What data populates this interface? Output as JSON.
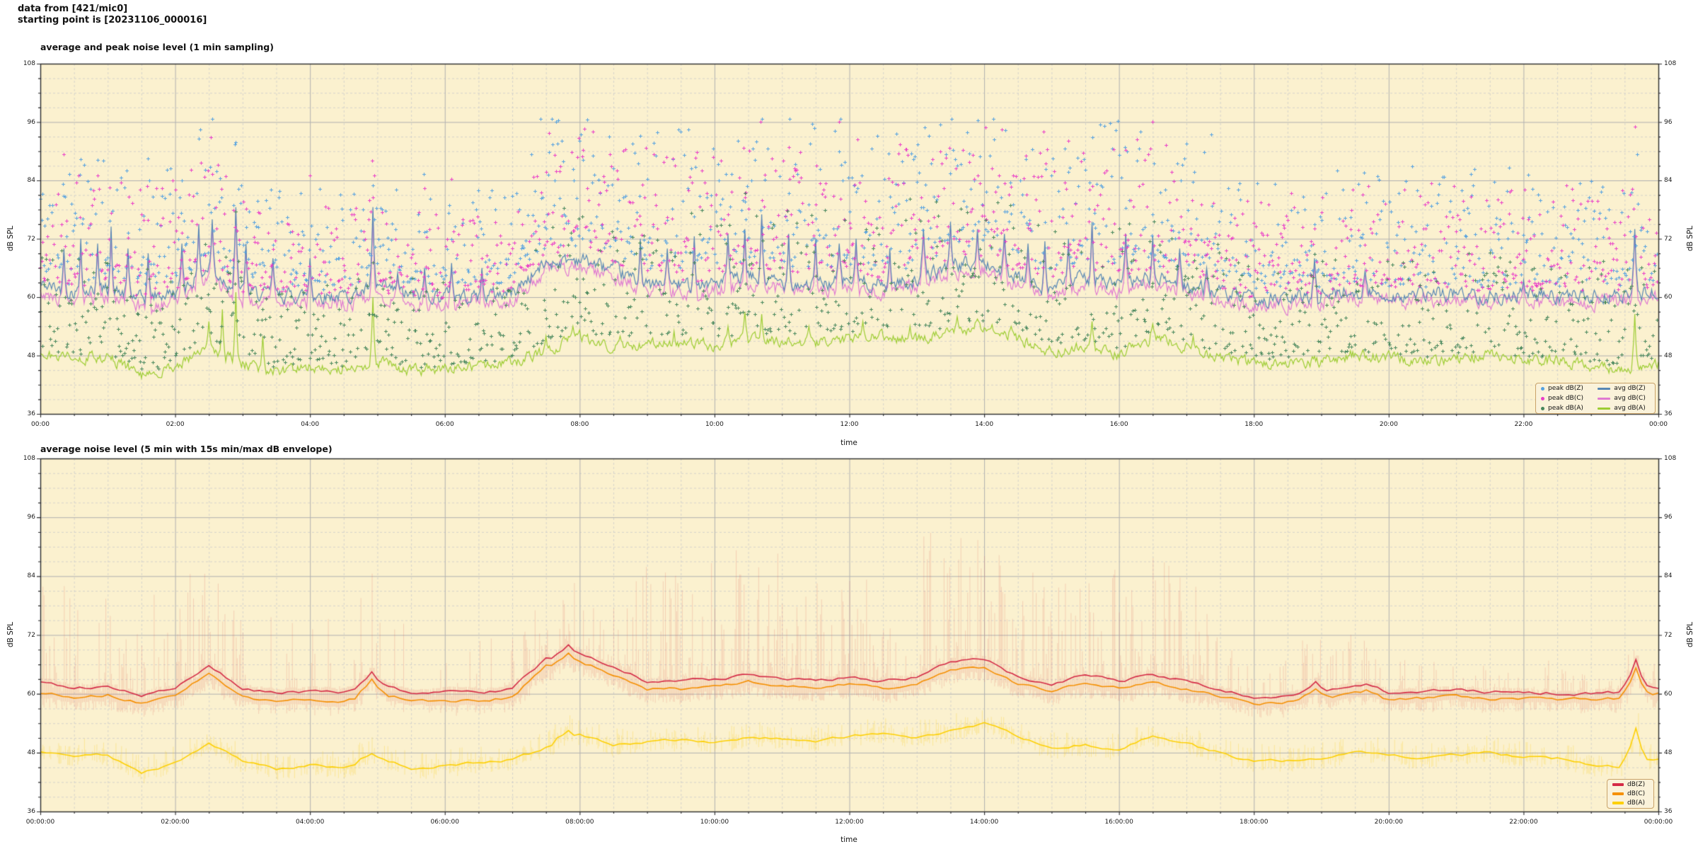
{
  "header": {
    "line1": "data from [421/mic0]",
    "line2": "starting point is [20231106_000016]"
  },
  "colors": {
    "plot_background": "#fbf1cf",
    "page_background": "#ffffff",
    "major_grid": "#b0b0b0",
    "minor_grid": "#cbcbcb",
    "spine": "#2b2b2b",
    "legend_background": "#faf2da",
    "legend_border": "#c9a268",
    "envelope_red": "rgba(223,90,82,0.22)",
    "envelope_yellow": "rgba(250,205,10,0.28)"
  },
  "chart_data": [
    {
      "type": "line+scatter",
      "title": "average and peak noise level (1 min sampling)",
      "xlabel": "time",
      "ylabel": "dB SPL",
      "ylim": [
        36,
        108
      ],
      "yticks": [
        36,
        48,
        60,
        72,
        84,
        96,
        108
      ],
      "yticklabels": [
        "36",
        "48",
        "60",
        "72",
        "84",
        "96",
        "108"
      ],
      "xlim_hours": [
        0,
        24
      ],
      "xtick_hours": [
        0,
        2,
        4,
        6,
        8,
        10,
        12,
        14,
        16,
        18,
        20,
        22,
        24
      ],
      "xtick_labels": [
        "00:00",
        "02:00",
        "04:00",
        "06:00",
        "08:00",
        "10:00",
        "12:00",
        "14:00",
        "16:00",
        "18:00",
        "20:00",
        "22:00",
        "00:00"
      ],
      "grid": {
        "major": true,
        "minor": true,
        "minor_db_step": 3,
        "minor_hour_step": 0.5
      },
      "anchor_dt_hours": 0.5,
      "sample_step_minutes": 1,
      "series": [
        {
          "name": "avg dB(Z)",
          "color": "#5787b5",
          "jitter": 2.4,
          "anchors": [
            62.5,
            61.2,
            61.5,
            59.6,
            61.0,
            65.8,
            61.0,
            60.3,
            60.5,
            60.2,
            62.0,
            60.3,
            60.4,
            60.3,
            61.0,
            67.0,
            68.0,
            65.5,
            62.5,
            62.5,
            63.0,
            64.0,
            63.0,
            62.5,
            63.5,
            62.5,
            63.5,
            66.5,
            67.0,
            63.5,
            62.0,
            64.0,
            62.5,
            64.0,
            62.5,
            60.8,
            59.3,
            59.6,
            60.5,
            61.3,
            60.2,
            60.4,
            60.8,
            60.2,
            60.5,
            60.1,
            60.0,
            60.3,
            61.2
          ],
          "spikes": [
            [
              0.35,
              70
            ],
            [
              0.6,
              72
            ],
            [
              0.85,
              71
            ],
            [
              1.05,
              74.5
            ],
            [
              1.3,
              70
            ],
            [
              1.6,
              69
            ],
            [
              2.1,
              71
            ],
            [
              2.35,
              75
            ],
            [
              2.55,
              76
            ],
            [
              2.9,
              78.5
            ],
            [
              3.05,
              71
            ],
            [
              3.45,
              68
            ],
            [
              4.0,
              68
            ],
            [
              4.93,
              78.5
            ],
            [
              5.3,
              65
            ],
            [
              5.7,
              66
            ],
            [
              6.1,
              67
            ],
            [
              6.55,
              66
            ],
            [
              8.9,
              72
            ],
            [
              9.3,
              70
            ],
            [
              9.7,
              72.5
            ],
            [
              10.2,
              73
            ],
            [
              10.45,
              74
            ],
            [
              10.7,
              77
            ],
            [
              11.1,
              73
            ],
            [
              11.5,
              72
            ],
            [
              11.85,
              71
            ],
            [
              12.1,
              72
            ],
            [
              12.6,
              70
            ],
            [
              13.1,
              74
            ],
            [
              13.5,
              75.5
            ],
            [
              13.9,
              74
            ],
            [
              14.3,
              73
            ],
            [
              14.65,
              71
            ],
            [
              14.9,
              71.5
            ],
            [
              15.25,
              72
            ],
            [
              15.6,
              75.5
            ],
            [
              16.1,
              73
            ],
            [
              16.5,
              72.5
            ],
            [
              16.9,
              70
            ],
            [
              17.3,
              66
            ],
            [
              18.9,
              68
            ],
            [
              19.65,
              65.5
            ],
            [
              22.0,
              63.5
            ],
            [
              23.65,
              74
            ]
          ]
        },
        {
          "name": "avg dB(C)",
          "color": "#e07ad2",
          "jitter": 2.4,
          "anchors": [
            60.3,
            59.5,
            59.8,
            58.0,
            59.3,
            64.2,
            59.3,
            58.6,
            58.8,
            58.5,
            60.2,
            58.6,
            58.7,
            58.6,
            59.3,
            65.6,
            66.6,
            64.0,
            61.0,
            61.0,
            61.5,
            62.5,
            61.5,
            61.0,
            62.0,
            61.0,
            62.0,
            65.0,
            65.6,
            62.0,
            60.5,
            62.4,
            61.0,
            62.4,
            61.0,
            59.4,
            58.0,
            58.3,
            59.2,
            60.0,
            59.0,
            59.2,
            59.5,
            59.0,
            59.2,
            58.9,
            58.8,
            59.1,
            60.0
          ],
          "spikes": [
            [
              0.35,
              69
            ],
            [
              0.6,
              71
            ],
            [
              0.85,
              70
            ],
            [
              1.05,
              73.5
            ],
            [
              1.3,
              69
            ],
            [
              1.6,
              68
            ],
            [
              2.1,
              70
            ],
            [
              2.35,
              74
            ],
            [
              2.55,
              75
            ],
            [
              2.9,
              78
            ],
            [
              3.05,
              70
            ],
            [
              3.45,
              67
            ],
            [
              4.0,
              67
            ],
            [
              4.93,
              77.5
            ],
            [
              5.3,
              64
            ],
            [
              5.7,
              65
            ],
            [
              6.1,
              66
            ],
            [
              6.55,
              65
            ],
            [
              8.9,
              71
            ],
            [
              9.3,
              69
            ],
            [
              9.7,
              71.5
            ],
            [
              10.2,
              72
            ],
            [
              10.45,
              73
            ],
            [
              10.7,
              76
            ],
            [
              11.1,
              72
            ],
            [
              11.5,
              71
            ],
            [
              11.85,
              70
            ],
            [
              12.1,
              71
            ],
            [
              12.6,
              69
            ],
            [
              13.1,
              73
            ],
            [
              13.5,
              74.5
            ],
            [
              13.9,
              73
            ],
            [
              14.3,
              72
            ],
            [
              14.65,
              70
            ],
            [
              14.9,
              70.5
            ],
            [
              15.25,
              71
            ],
            [
              15.6,
              74.5
            ],
            [
              16.1,
              72
            ],
            [
              16.5,
              71.5
            ],
            [
              16.9,
              69
            ],
            [
              17.3,
              65
            ],
            [
              18.9,
              67
            ],
            [
              19.65,
              64.5
            ],
            [
              22.0,
              62.5
            ],
            [
              23.65,
              73
            ]
          ]
        },
        {
          "name": "avg dB(A)",
          "color": "#9dcd33",
          "jitter": 1.9,
          "anchors": [
            48.0,
            47.3,
            47.6,
            44.0,
            45.8,
            49.8,
            46.3,
            44.6,
            45.6,
            44.9,
            46.8,
            44.9,
            45.3,
            45.9,
            46.5,
            49.0,
            52.0,
            49.6,
            50.2,
            50.8,
            50.1,
            51.3,
            50.8,
            50.4,
            51.4,
            52.0,
            51.0,
            52.5,
            54.0,
            51.5,
            48.8,
            49.8,
            48.4,
            51.5,
            49.8,
            47.9,
            46.2,
            46.4,
            46.8,
            48.2,
            47.5,
            46.6,
            47.5,
            48.0,
            47.0,
            46.8,
            45.6,
            45.0,
            46.6
          ],
          "spikes": [
            [
              2.5,
              55
            ],
            [
              2.7,
              57.5
            ],
            [
              2.9,
              61
            ],
            [
              3.3,
              52
            ],
            [
              4.93,
              60
            ],
            [
              7.5,
              52
            ],
            [
              7.9,
              54
            ],
            [
              8.6,
              52
            ],
            [
              9.4,
              53
            ],
            [
              10.2,
              54
            ],
            [
              10.45,
              57
            ],
            [
              10.7,
              56.5
            ],
            [
              11.4,
              54
            ],
            [
              12.2,
              55
            ],
            [
              12.9,
              54
            ],
            [
              13.6,
              56
            ],
            [
              13.9,
              55.5
            ],
            [
              14.4,
              54
            ],
            [
              15.6,
              55
            ],
            [
              16.5,
              54.5
            ],
            [
              17.1,
              52
            ],
            [
              23.65,
              56.5
            ]
          ]
        }
      ],
      "scatter": [
        {
          "name": "peak dB(Z)",
          "color": "#55a2e0",
          "base_series": 0,
          "min_gap": 3,
          "gap_range": 23,
          "power": 2.2,
          "prob": 0.8,
          "max": 96.5
        },
        {
          "name": "peak dB(C)",
          "color": "#ea3ec8",
          "base_series": 1,
          "min_gap": 3,
          "gap_range": 21,
          "power": 2.2,
          "prob": 0.8,
          "max": 96.0
        },
        {
          "name": "peak dB(A)",
          "color": "#47875c",
          "base_series": 2,
          "min_gap": 1.5,
          "gap_range": 20,
          "power": 2.0,
          "prob": 0.78,
          "max": 82.0
        }
      ],
      "legend": {
        "scatter_labels": [
          "peak dB(Z)",
          "peak dB(C)",
          "peak dB(A)"
        ],
        "line_labels": [
          "avg dB(Z)",
          "avg dB(C)",
          "avg dB(A)"
        ],
        "position": "lower right"
      }
    },
    {
      "type": "line+envelope",
      "title": "average noise level (5 min with 15s min/max dB envelope)",
      "xlabel": "time",
      "ylabel": "dB SPL",
      "ylim": [
        36,
        108
      ],
      "yticks": [
        36,
        48,
        60,
        72,
        84,
        96,
        108
      ],
      "yticklabels": [
        "36",
        "48",
        "60",
        "72",
        "84",
        "96",
        "108"
      ],
      "xlim_hours": [
        0,
        24
      ],
      "xtick_hours": [
        0,
        2,
        4,
        6,
        8,
        10,
        12,
        14,
        16,
        18,
        20,
        22,
        24
      ],
      "xtick_labels": [
        "00:00:00",
        "02:00:00",
        "04:00:00",
        "06:00:00",
        "08:00:00",
        "10:00:00",
        "12:00:00",
        "14:00:00",
        "16:00:00",
        "18:00:00",
        "20:00:00",
        "22:00:00",
        "00:00:00"
      ],
      "grid": {
        "major": true,
        "minor": true,
        "minor_db_step": 3,
        "minor_hour_step": 0.5
      },
      "anchor_dt_hours": 0.5,
      "sample_step_minutes": 5,
      "series": [
        {
          "name": "dB(Z)",
          "color": "#d42a46",
          "jitter": 0.55,
          "anchors": [
            62.5,
            61.2,
            61.5,
            59.6,
            61.0,
            65.8,
            61.0,
            60.3,
            60.5,
            60.2,
            62.0,
            60.3,
            60.4,
            60.3,
            61.0,
            67.0,
            68.0,
            65.5,
            62.5,
            62.5,
            63.0,
            64.0,
            63.0,
            62.5,
            63.5,
            62.5,
            63.5,
            66.5,
            67.0,
            63.5,
            62.0,
            64.0,
            62.5,
            64.0,
            62.5,
            60.8,
            59.3,
            59.6,
            60.5,
            61.3,
            60.2,
            60.4,
            60.8,
            60.2,
            60.5,
            60.1,
            60.0,
            60.3,
            61.2
          ],
          "spikes": [
            [
              4.93,
              64.5
            ],
            [
              7.85,
              70
            ],
            [
              18.9,
              62.5
            ],
            [
              19.65,
              62
            ],
            [
              23.63,
              67
            ]
          ]
        },
        {
          "name": "dB(C)",
          "color": "#f59003",
          "jitter": 0.55,
          "anchors": [
            60.3,
            59.5,
            59.8,
            58.0,
            59.3,
            64.2,
            59.3,
            58.6,
            58.8,
            58.5,
            60.2,
            58.6,
            58.7,
            58.6,
            59.3,
            65.6,
            66.6,
            64.0,
            61.0,
            61.0,
            61.5,
            62.5,
            61.5,
            61.0,
            62.0,
            61.0,
            62.0,
            65.0,
            65.6,
            62.0,
            60.5,
            62.4,
            61.0,
            62.4,
            61.0,
            59.4,
            58.0,
            58.3,
            59.2,
            60.0,
            59.0,
            59.2,
            59.5,
            59.0,
            59.2,
            58.9,
            58.8,
            59.1,
            60.0
          ],
          "spikes": [
            [
              4.93,
              63
            ],
            [
              7.85,
              68.3
            ],
            [
              18.9,
              61
            ],
            [
              19.65,
              60.8
            ],
            [
              23.63,
              65.3
            ]
          ]
        },
        {
          "name": "dB(A)",
          "color": "#fdd005",
          "jitter": 0.5,
          "anchors": [
            48.0,
            47.3,
            47.6,
            44.0,
            45.8,
            49.8,
            46.3,
            44.6,
            45.6,
            44.9,
            46.8,
            44.9,
            45.3,
            45.9,
            46.5,
            49.0,
            52.0,
            49.6,
            50.2,
            50.8,
            50.1,
            51.3,
            50.8,
            50.4,
            51.4,
            52.0,
            51.0,
            52.5,
            54.0,
            51.5,
            48.8,
            49.8,
            48.4,
            51.5,
            49.8,
            47.9,
            46.2,
            46.4,
            46.8,
            48.2,
            47.5,
            46.6,
            47.5,
            48.0,
            47.0,
            46.8,
            45.6,
            45.0,
            46.6
          ],
          "spikes": [
            [
              4.93,
              47.8
            ],
            [
              7.85,
              52.5
            ],
            [
              23.63,
              53
            ]
          ]
        }
      ],
      "envelope": {
        "description": "15s min/max dB envelope strands",
        "top_anchors": [
          82,
          84,
          80,
          78,
          86,
          88,
          80,
          76,
          74,
          78,
          86,
          72,
          70,
          72,
          78,
          80,
          84,
          82,
          86,
          85,
          88,
          92,
          90,
          88,
          90,
          88,
          92,
          95,
          92,
          86,
          84,
          94,
          86,
          88,
          86,
          78,
          66,
          70,
          75,
          72,
          68,
          66,
          68,
          66,
          64,
          68,
          64,
          70,
          66
        ]
      },
      "legend": {
        "line_labels": [
          "dB(Z)",
          "dB(C)",
          "dB(A)"
        ],
        "position": "lower right"
      }
    }
  ]
}
